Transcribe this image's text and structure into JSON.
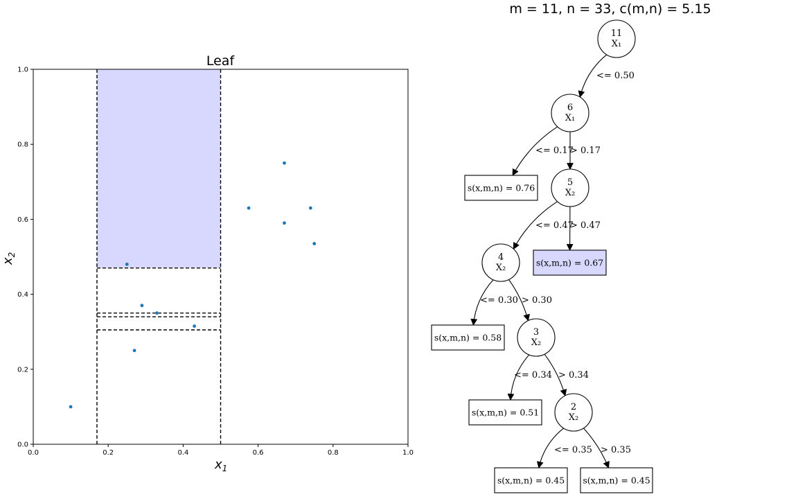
{
  "tree_title": "m = 11, n = 33, c(m,n) = 5.15",
  "chart_data": {
    "type": "scatter",
    "title": "Leaf",
    "xlabel": "x",
    "xlabel_sub": "1",
    "ylabel": "x",
    "ylabel_sub": "2",
    "xlim": [
      0.0,
      1.0
    ],
    "ylim": [
      0.0,
      1.0
    ],
    "xticks": [
      "0.0",
      "0.2",
      "0.4",
      "0.6",
      "0.8",
      "1.0"
    ],
    "yticks": [
      "0.0",
      "0.2",
      "0.4",
      "0.6",
      "0.8",
      "1.0"
    ],
    "grid": false,
    "point_color": "#1f77b4",
    "highlight_color": "#d8d8ff",
    "points": [
      {
        "x": 0.1,
        "y": 0.1
      },
      {
        "x": 0.25,
        "y": 0.48
      },
      {
        "x": 0.29,
        "y": 0.37
      },
      {
        "x": 0.33,
        "y": 0.35
      },
      {
        "x": 0.43,
        "y": 0.315
      },
      {
        "x": 0.27,
        "y": 0.25
      },
      {
        "x": 0.575,
        "y": 0.63
      },
      {
        "x": 0.67,
        "y": 0.75
      },
      {
        "x": 0.67,
        "y": 0.59
      },
      {
        "x": 0.74,
        "y": 0.63
      },
      {
        "x": 0.75,
        "y": 0.535
      }
    ],
    "highlight_region": {
      "x0": 0.17,
      "x1": 0.5,
      "y0": 0.47,
      "y1": 1.0
    },
    "partition_lines": [
      {
        "x0": 0.17,
        "y0": 0.0,
        "x1": 0.17,
        "y1": 1.0
      },
      {
        "x0": 0.5,
        "y0": 0.0,
        "x1": 0.5,
        "y1": 1.0
      },
      {
        "x0": 0.17,
        "y0": 0.47,
        "x1": 0.5,
        "y1": 0.47
      },
      {
        "x0": 0.17,
        "y0": 0.35,
        "x1": 0.5,
        "y1": 0.35
      },
      {
        "x0": 0.17,
        "y0": 0.34,
        "x1": 0.5,
        "y1": 0.34
      },
      {
        "x0": 0.17,
        "y0": 0.305,
        "x1": 0.5,
        "y1": 0.305
      }
    ]
  },
  "tree": {
    "nodes": [
      {
        "id": "n11",
        "label": "11",
        "feature": "X₁"
      },
      {
        "id": "n6",
        "label": "6",
        "feature": "X₁"
      },
      {
        "id": "n5",
        "label": "5",
        "feature": "X₂"
      },
      {
        "id": "n4",
        "label": "4",
        "feature": "X₂"
      },
      {
        "id": "n3",
        "label": "3",
        "feature": "X₂"
      },
      {
        "id": "n2",
        "label": "2",
        "feature": "X₂"
      }
    ],
    "leaves": [
      {
        "id": "l1",
        "text": "s(x,m,n) = 0.76",
        "highlight": false
      },
      {
        "id": "l2",
        "text": "s(x,m,n) = 0.67",
        "highlight": true
      },
      {
        "id": "l3",
        "text": "s(x,m,n) = 0.58",
        "highlight": false
      },
      {
        "id": "l4",
        "text": "s(x,m,n) = 0.51",
        "highlight": false
      },
      {
        "id": "l5",
        "text": "s(x,m,n) = 0.45",
        "highlight": false
      },
      {
        "id": "l6",
        "text": "s(x,m,n) = 0.45",
        "highlight": false
      }
    ],
    "edges": [
      {
        "from": "n11",
        "to": "n6",
        "label": "<= 0.50"
      },
      {
        "from": "n6",
        "to": "l1",
        "label": "<= 0.17"
      },
      {
        "from": "n6",
        "to": "n5",
        "label": "> 0.17"
      },
      {
        "from": "n5",
        "to": "n4",
        "label": "<= 0.47"
      },
      {
        "from": "n5",
        "to": "l2",
        "label": "> 0.47"
      },
      {
        "from": "n4",
        "to": "l3",
        "label": "<= 0.30"
      },
      {
        "from": "n4",
        "to": "n3",
        "label": "> 0.30"
      },
      {
        "from": "n3",
        "to": "l4",
        "label": "<= 0.34"
      },
      {
        "from": "n3",
        "to": "n2",
        "label": "> 0.34"
      },
      {
        "from": "n2",
        "to": "l5",
        "label": "<= 0.35"
      },
      {
        "from": "n2",
        "to": "l6",
        "label": "> 0.35"
      }
    ]
  }
}
